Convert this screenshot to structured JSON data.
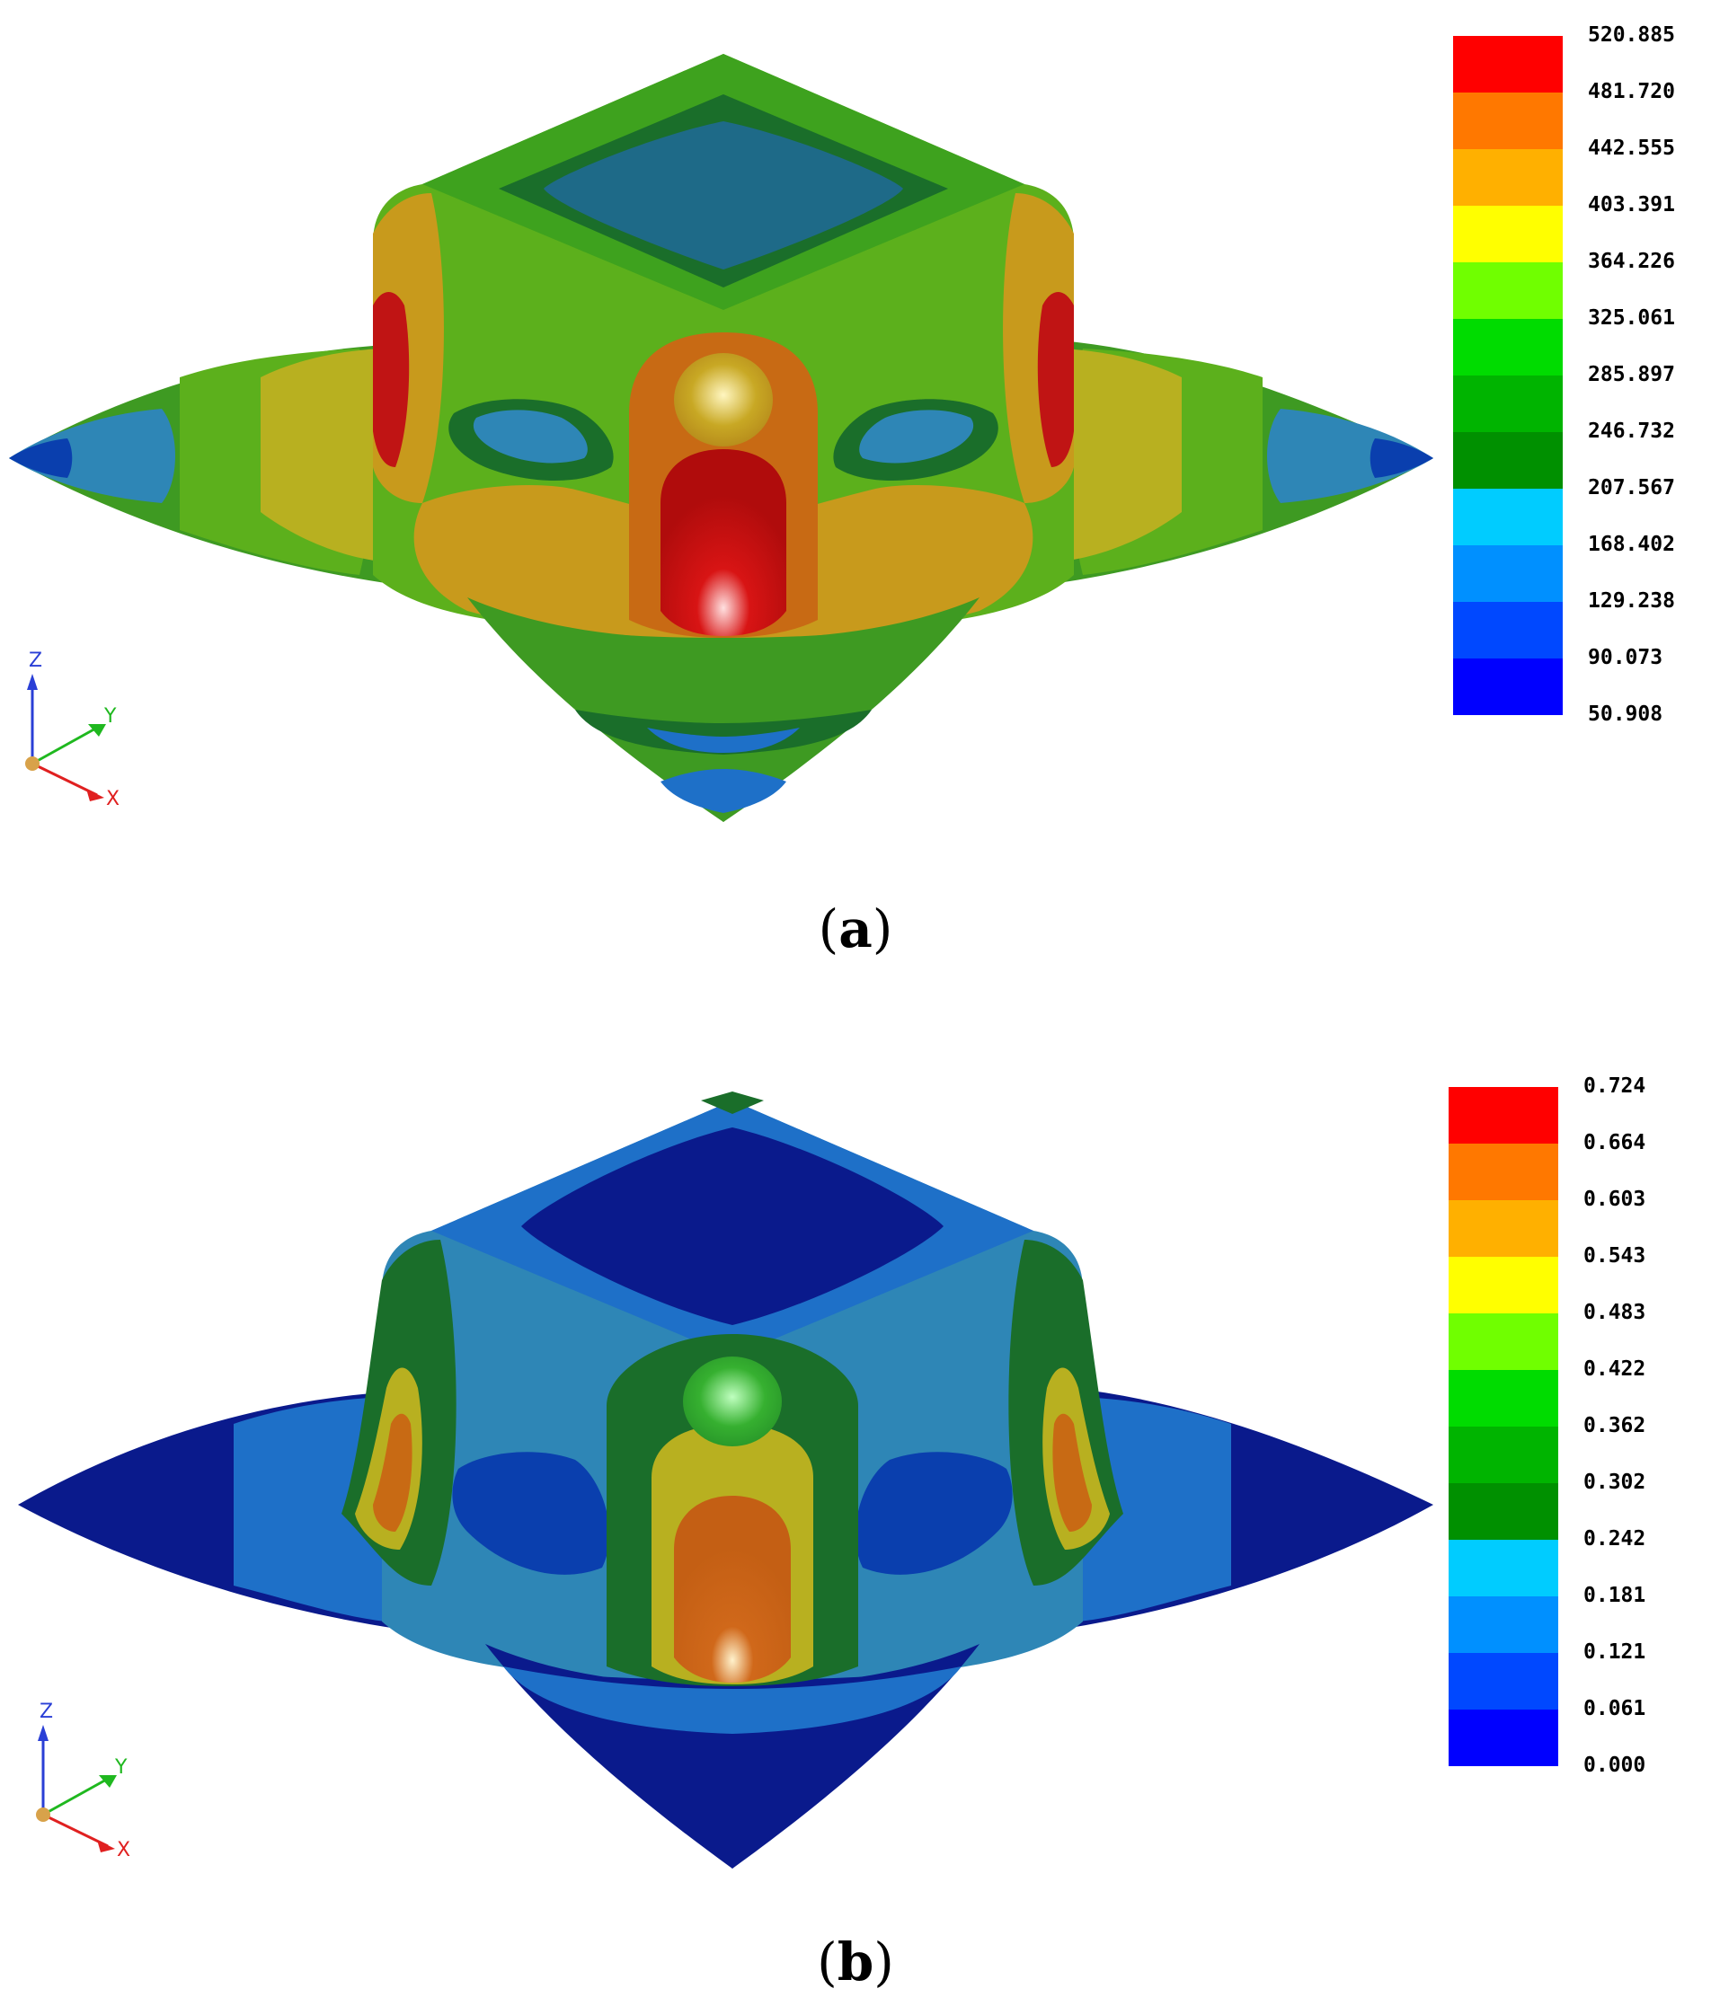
{
  "colors": {
    "band": [
      "#0000ff",
      "#0048ff",
      "#0090ff",
      "#00ccff",
      "#009000",
      "#00b400",
      "#00dc00",
      "#70ff00",
      "#ffff00",
      "#ffb000",
      "#ff7800",
      "#ff0000"
    ],
    "shade": [
      "#0a1a8c",
      "#0a3fae",
      "#1e70c8",
      "#2e86b6",
      "#1a6e2a",
      "#2a8a2a",
      "#3ea21e",
      "#5cb01c",
      "#b8b020",
      "#c89a1c",
      "#c86a14",
      "#c01414"
    ],
    "axis_z": "#2a3fd6",
    "axis_y": "#1fb81f",
    "axis_x": "#e02020",
    "origin": "#d8a24a"
  },
  "panels": [
    {
      "id": "a",
      "caption_open": "(",
      "caption_label": "a",
      "caption_close": ")",
      "legend_ticks": [
        "520.885",
        "481.720",
        "442.555",
        "403.391",
        "364.226",
        "325.061",
        "285.897",
        "246.732",
        "207.567",
        "168.402",
        "129.238",
        "90.073",
        "50.908"
      ],
      "axis_labels": {
        "z": "Z",
        "y": "Y",
        "x": "X"
      }
    },
    {
      "id": "b",
      "caption_open": "(",
      "caption_label": "b",
      "caption_close": ")",
      "legend_ticks": [
        "0.724",
        "0.664",
        "0.603",
        "0.543",
        "0.483",
        "0.422",
        "0.362",
        "0.302",
        "0.242",
        "0.181",
        "0.121",
        "0.061",
        "0.000"
      ],
      "axis_labels": {
        "z": "Z",
        "y": "Y",
        "x": "X"
      }
    }
  ]
}
